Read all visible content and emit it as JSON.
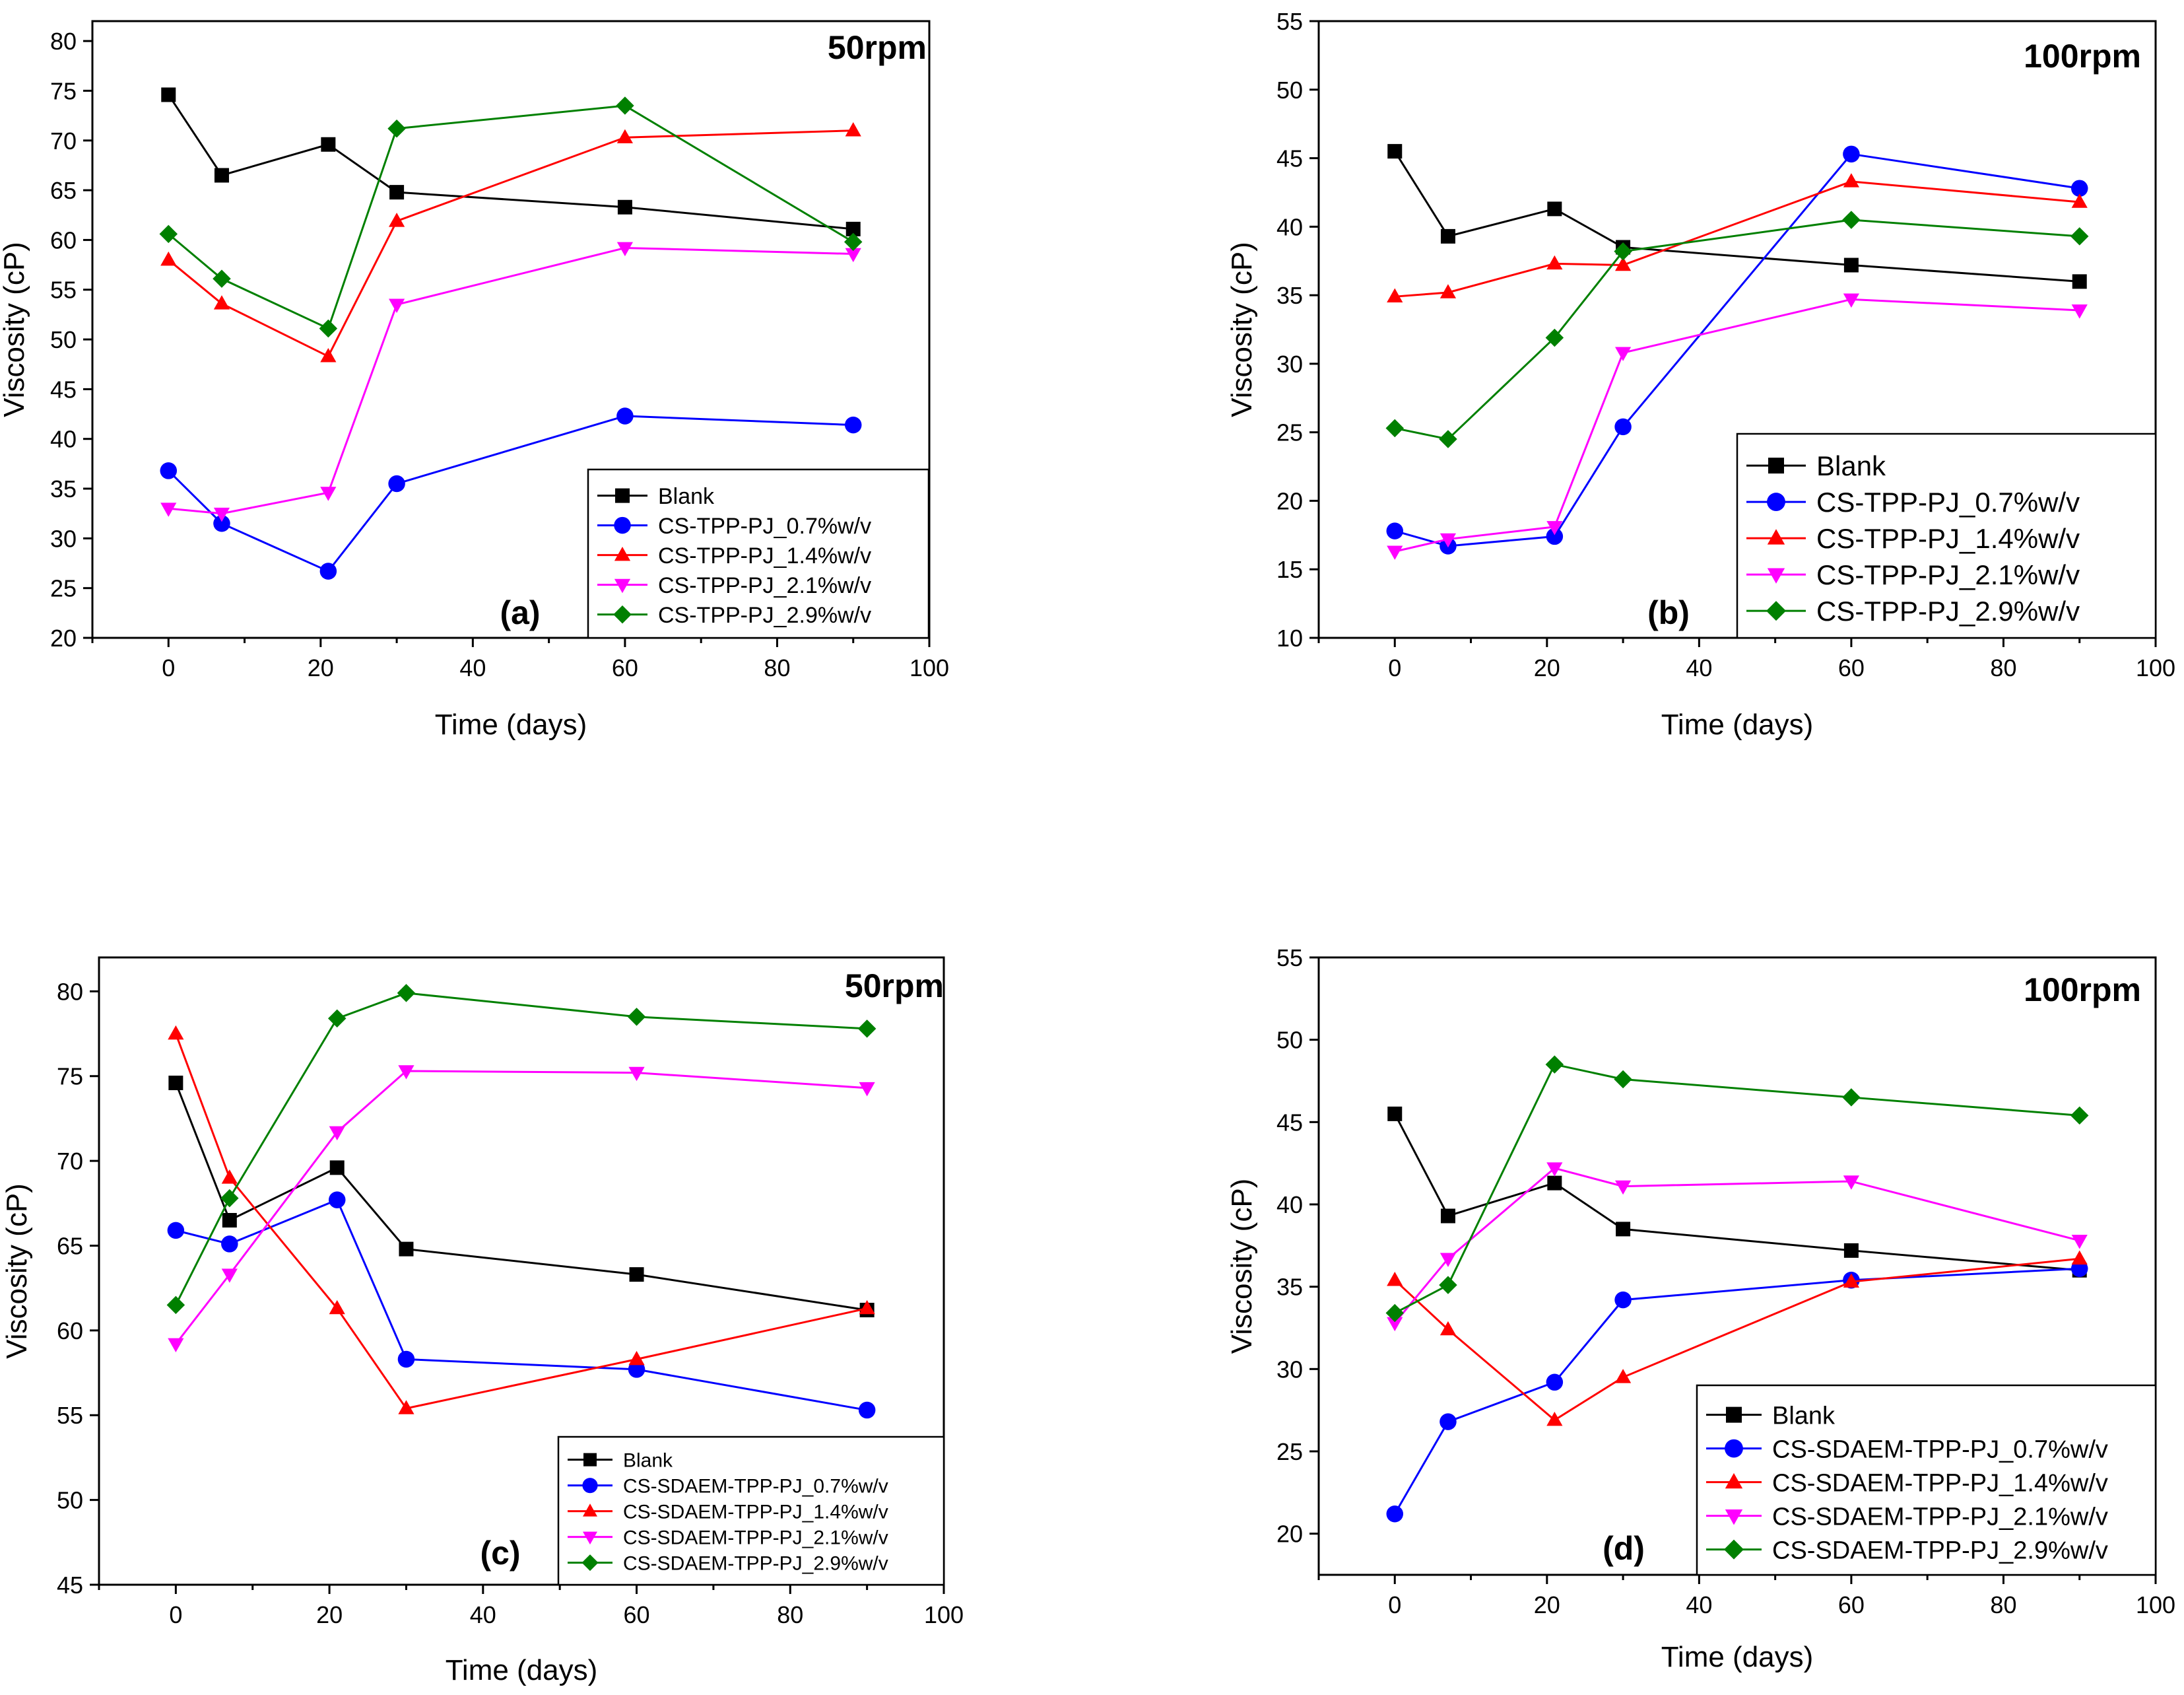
{
  "colors": {
    "blank": "#000000",
    "c07": "#0000FF",
    "c14": "#FF0000",
    "c21": "#FF00FF",
    "c29": "#008000"
  },
  "chart_data": [
    {
      "type": "line",
      "panel_label": "(a)",
      "speed_label": "50rpm",
      "xlabel": "Time (days)",
      "ylabel": "Viscosity (cP)",
      "xlim": [
        -10,
        100
      ],
      "ylim": [
        20,
        82
      ],
      "xticks": [
        0,
        20,
        40,
        60,
        80,
        100
      ],
      "yticks": [
        20,
        25,
        30,
        35,
        40,
        45,
        50,
        55,
        60,
        65,
        70,
        75,
        80
      ],
      "legend_position": "bottom-right",
      "series": [
        {
          "name": "Blank",
          "color": "#000000",
          "marker": "square",
          "x": [
            0,
            7,
            21,
            30,
            60,
            90
          ],
          "y": [
            74.6,
            66.5,
            69.6,
            64.8,
            63.3,
            61.1
          ]
        },
        {
          "name": "CS-TPP-PJ_0.7%w/v",
          "color": "#0000FF",
          "marker": "circle",
          "x": [
            0,
            7,
            21,
            30,
            60,
            90
          ],
          "y": [
            36.8,
            31.5,
            26.7,
            35.5,
            42.3,
            41.4
          ]
        },
        {
          "name": "CS-TPP-PJ_1.4%w/v",
          "color": "#FF0000",
          "marker": "triangle-up",
          "x": [
            0,
            7,
            21,
            30,
            60,
            90
          ],
          "y": [
            58.0,
            53.6,
            48.3,
            61.9,
            70.3,
            71.0
          ]
        },
        {
          "name": "CS-TPP-PJ_2.1%w/v",
          "color": "#FF00FF",
          "marker": "triangle-down",
          "x": [
            0,
            7,
            21,
            30,
            60,
            90
          ],
          "y": [
            33.0,
            32.5,
            34.6,
            53.5,
            59.2,
            58.6
          ]
        },
        {
          "name": "CS-TPP-PJ_2.9%w/v",
          "color": "#008000",
          "marker": "diamond",
          "x": [
            0,
            7,
            21,
            30,
            60,
            90
          ],
          "y": [
            60.6,
            56.1,
            51.1,
            71.2,
            73.5,
            59.8
          ]
        }
      ]
    },
    {
      "type": "line",
      "panel_label": "(b)",
      "speed_label": "100rpm",
      "xlabel": "Time (days)",
      "ylabel": "Viscosity (cP)",
      "xlim": [
        -10,
        100
      ],
      "ylim": [
        10,
        55
      ],
      "xticks": [
        0,
        20,
        40,
        60,
        80,
        100
      ],
      "yticks": [
        10,
        15,
        20,
        25,
        30,
        35,
        40,
        45,
        50,
        55
      ],
      "legend_position": "bottom-right",
      "series": [
        {
          "name": "Blank",
          "color": "#000000",
          "marker": "square",
          "x": [
            0,
            7,
            21,
            30,
            60,
            90
          ],
          "y": [
            45.5,
            39.3,
            41.3,
            38.5,
            37.2,
            36.0
          ]
        },
        {
          "name": "CS-TPP-PJ_0.7%w/v",
          "color": "#0000FF",
          "marker": "circle",
          "x": [
            0,
            7,
            21,
            30,
            60,
            90
          ],
          "y": [
            17.8,
            16.7,
            17.4,
            25.4,
            45.3,
            42.8
          ]
        },
        {
          "name": "CS-TPP-PJ_1.4%w/v",
          "color": "#FF0000",
          "marker": "triangle-up",
          "x": [
            0,
            7,
            21,
            30,
            60,
            90
          ],
          "y": [
            34.9,
            35.2,
            37.3,
            37.2,
            43.3,
            41.8
          ]
        },
        {
          "name": "CS-TPP-PJ_2.1%w/v",
          "color": "#FF00FF",
          "marker": "triangle-down",
          "x": [
            0,
            7,
            21,
            30,
            60,
            90
          ],
          "y": [
            16.3,
            17.2,
            18.1,
            30.8,
            34.7,
            33.9
          ]
        },
        {
          "name": "CS-TPP-PJ_2.9%w/v",
          "color": "#008000",
          "marker": "diamond",
          "x": [
            0,
            7,
            21,
            30,
            60,
            90
          ],
          "y": [
            25.3,
            24.5,
            31.9,
            38.2,
            40.5,
            39.3
          ]
        }
      ]
    },
    {
      "type": "line",
      "panel_label": "(c)",
      "speed_label": "50rpm",
      "xlabel": "Time (days)",
      "ylabel": "Viscosity (cP)",
      "xlim": [
        -10,
        100
      ],
      "ylim": [
        45,
        82
      ],
      "xticks": [
        0,
        20,
        40,
        60,
        80,
        100
      ],
      "yticks": [
        45,
        50,
        55,
        60,
        65,
        70,
        75,
        80
      ],
      "legend_position": "bottom-right",
      "series": [
        {
          "name": "Blank",
          "color": "#000000",
          "marker": "square",
          "x": [
            0,
            7,
            21,
            30,
            60,
            90
          ],
          "y": [
            74.6,
            66.5,
            69.6,
            64.8,
            63.3,
            61.2
          ]
        },
        {
          "name": "CS-SDAEM-TPP-PJ_0.7%w/v",
          "color": "#0000FF",
          "marker": "circle",
          "x": [
            0,
            7,
            21,
            30,
            60,
            90
          ],
          "y": [
            65.9,
            65.1,
            67.7,
            58.3,
            57.7,
            55.3
          ]
        },
        {
          "name": "CS-SDAEM-TPP-PJ_1.4%w/v",
          "color": "#FF0000",
          "marker": "triangle-up",
          "x": [
            0,
            7,
            21,
            30,
            60,
            90
          ],
          "y": [
            77.5,
            69.0,
            61.3,
            55.4,
            58.3,
            61.3
          ]
        },
        {
          "name": "CS-SDAEM-TPP-PJ_2.1%w/v",
          "color": "#FF00FF",
          "marker": "triangle-down",
          "x": [
            0,
            7,
            21,
            30,
            60,
            90
          ],
          "y": [
            59.2,
            63.3,
            71.7,
            75.3,
            75.2,
            74.3
          ]
        },
        {
          "name": "CS-SDAEM-TPP-PJ_2.9%w/v",
          "color": "#008000",
          "marker": "diamond",
          "x": [
            0,
            7,
            21,
            30,
            60,
            90
          ],
          "y": [
            61.5,
            67.8,
            78.4,
            79.9,
            78.5,
            77.8
          ]
        }
      ]
    },
    {
      "type": "line",
      "panel_label": "(d)",
      "speed_label": "100rpm",
      "xlabel": "Time (days)",
      "ylabel": "Viscosity (cP)",
      "xlim": [
        -10,
        100
      ],
      "ylim": [
        17.5,
        55
      ],
      "xticks": [
        0,
        20,
        40,
        60,
        80,
        100
      ],
      "yticks": [
        20,
        25,
        30,
        35,
        40,
        45,
        50,
        55
      ],
      "legend_position": "bottom-right",
      "series": [
        {
          "name": "Blank",
          "color": "#000000",
          "marker": "square",
          "x": [
            0,
            7,
            21,
            30,
            60,
            90
          ],
          "y": [
            45.5,
            39.3,
            41.3,
            38.5,
            37.2,
            36.0
          ]
        },
        {
          "name": "CS-SDAEM-TPP-PJ_0.7%w/v",
          "color": "#0000FF",
          "marker": "circle",
          "x": [
            0,
            7,
            21,
            30,
            60,
            90
          ],
          "y": [
            21.2,
            26.8,
            29.2,
            34.2,
            35.4,
            36.1
          ]
        },
        {
          "name": "CS-SDAEM-TPP-PJ_1.4%w/v",
          "color": "#FF0000",
          "marker": "triangle-up",
          "x": [
            0,
            7,
            21,
            30,
            60,
            90
          ],
          "y": [
            35.4,
            32.4,
            26.9,
            29.5,
            35.3,
            36.7
          ]
        },
        {
          "name": "CS-SDAEM-TPP-PJ_2.1%w/v",
          "color": "#FF00FF",
          "marker": "triangle-down",
          "x": [
            0,
            7,
            21,
            30,
            60,
            90
          ],
          "y": [
            32.8,
            36.7,
            42.2,
            41.1,
            41.4,
            37.8
          ]
        },
        {
          "name": "CS-SDAEM-TPP-PJ_2.9%w/v",
          "color": "#008000",
          "marker": "diamond",
          "x": [
            0,
            7,
            21,
            30,
            60,
            90
          ],
          "y": [
            33.4,
            35.1,
            48.5,
            47.6,
            46.5,
            45.4
          ]
        }
      ]
    }
  ]
}
